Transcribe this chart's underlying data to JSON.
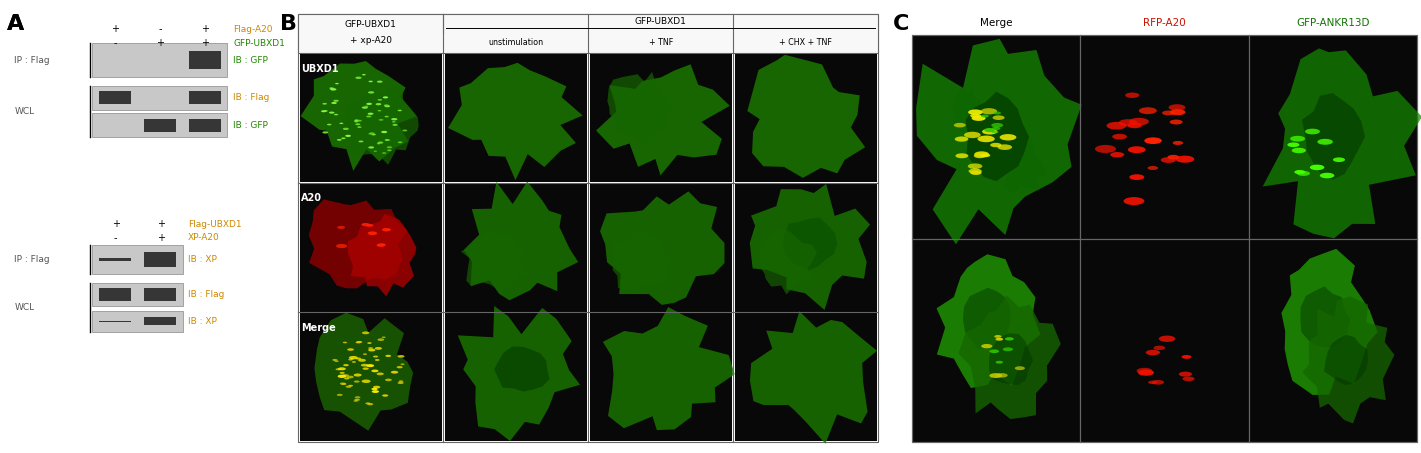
{
  "bg_color": "#ffffff",
  "fig_w": 14.21,
  "fig_h": 4.53,
  "dpi": 100,
  "panel_A": {
    "label": "A",
    "top": {
      "lane_symbols_row1": [
        "+",
        "-",
        "+"
      ],
      "lane_symbols_row2": [
        "-",
        "+",
        "+"
      ],
      "right_labels": [
        "Flag-A20",
        "GFP-UBXD1"
      ],
      "right_colors": [
        "#cc8800",
        "#228800"
      ],
      "sections": [
        {
          "side_label": "IP : Flag",
          "ib_label": "IB : GFP",
          "ib_color": "#228800",
          "band_intensities": [
            0,
            0,
            1.0
          ]
        },
        {
          "side_label": "WCL",
          "ib_label": "IB : Flag",
          "ib_color": "#cc8800",
          "band_intensities": [
            1.0,
            0,
            1.0
          ]
        },
        {
          "side_label": "",
          "ib_label": "IB : GFP",
          "ib_color": "#228800",
          "band_intensities": [
            0,
            1.0,
            1.0
          ]
        }
      ]
    },
    "bottom": {
      "lane_symbols_row1": [
        "+",
        "+"
      ],
      "lane_symbols_row2": [
        "-",
        "+"
      ],
      "right_labels": [
        "Flag-UBXD1",
        "XP-A20"
      ],
      "right_colors": [
        "#cc8800",
        "#cc8800"
      ],
      "sections": [
        {
          "side_label": "IP : Flag",
          "ib_label": "IB : XP",
          "ib_color": "#cc8800",
          "band_intensities": [
            0.15,
            0.9
          ]
        },
        {
          "side_label": "WCL",
          "ib_label": "IB : Flag",
          "ib_color": "#cc8800",
          "band_intensities": [
            1.0,
            1.0
          ]
        },
        {
          "side_label": "",
          "ib_label": "IB : XP",
          "ib_color": "#cc8800",
          "band_intensities": [
            0.05,
            0.7
          ]
        }
      ]
    }
  },
  "panel_B": {
    "label": "B",
    "col0_header_line1": "GFP-UBXD1",
    "col0_header_line2": "+ xp-A20",
    "top_span_label": "GFP-UBXD1",
    "sub_headers": [
      "unstimulation",
      "+ TNF",
      "+ CHX + TNF"
    ],
    "row_labels": [
      "UBXD1",
      "A20",
      "Merge"
    ]
  },
  "panel_C": {
    "label": "C",
    "col_headers": [
      "Merge",
      "RFP-A20",
      "GFP-ANKR13D"
    ],
    "col_header_colors": [
      "#000000",
      "#cc1100",
      "#117700"
    ]
  }
}
